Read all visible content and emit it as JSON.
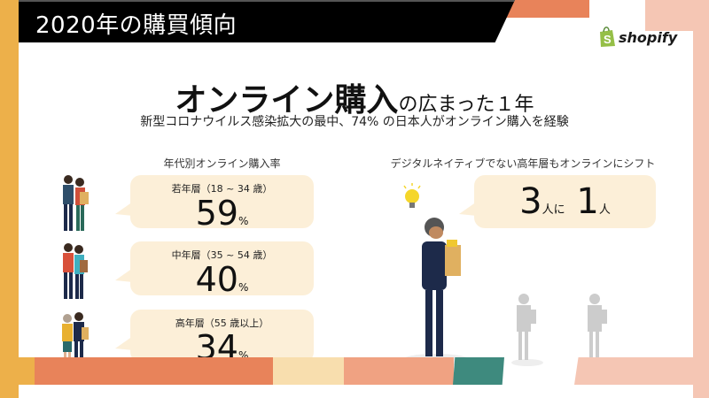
{
  "banner": {
    "title": "2020年の購買傾向"
  },
  "brand": {
    "name": "shopify",
    "color": "#95BF47"
  },
  "headline": {
    "main": "オンライン購入",
    "rest": "の広まった１年"
  },
  "subline": "新型コロナウイルス感染拡大の最中、74% の日本人がオンライン購入を経験",
  "left": {
    "heading": "年代別オンライン購入率",
    "groups": [
      {
        "label": "若年層（18 ~ 34 歳）",
        "value": "59",
        "unit": "%"
      },
      {
        "label": "中年層（35 ~ 54 歳）",
        "value": "40",
        "unit": "%"
      },
      {
        "label": "高年層（55 歳以上）",
        "value": "34",
        "unit": "%"
      }
    ]
  },
  "right": {
    "heading": "デジタルネイティブでない高年層もオンラインにシフト",
    "n1": "3",
    "t1": "人に",
    "n2": "1",
    "t2": "人"
  },
  "colors": {
    "yellow": "#EDB04A",
    "orange": "#E8835A",
    "cream": "#F8DEAE",
    "salmon": "#F0A282",
    "teal": "#3E8A7E",
    "pink": "#F5C6B4",
    "bubble": "#FCEFD8"
  }
}
